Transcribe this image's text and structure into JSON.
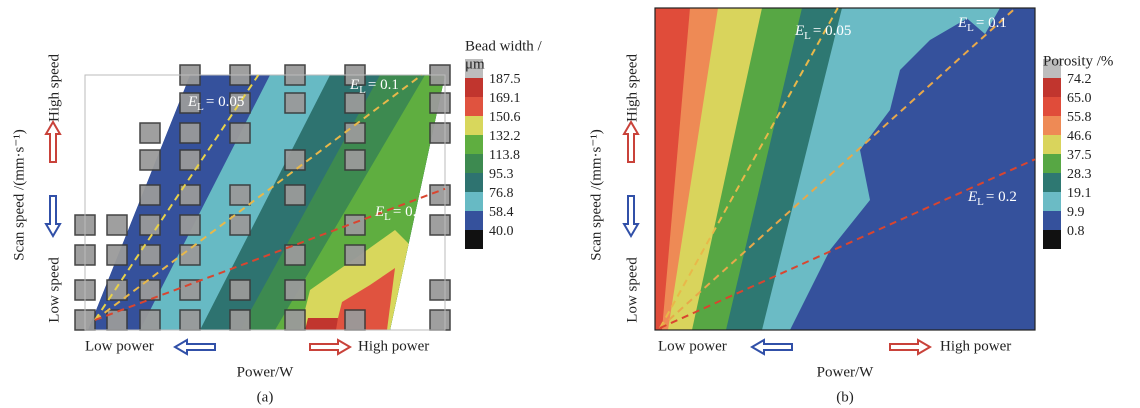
{
  "chart_data": [
    {
      "type": "contour",
      "x_label": "Power/W",
      "y_label": "Scan speed /(mm·s⁻¹)",
      "panel_label": "(a)",
      "colorbar_title": [
        "Bead width /",
        "μm"
      ],
      "levels": [
        187.5,
        169.1,
        150.6,
        132.2,
        113.8,
        95.3,
        76.8,
        58.4,
        {
          "value": 40,
          "label": "40.0"
        }
      ],
      "colors": [
        "#c1352e",
        "#e0533f",
        "#d8d75c",
        "#5fae40",
        "#3d8a50",
        "#2e7370",
        "#67bac4",
        "#35519c",
        "#111111"
      ],
      "power_labels": [
        "Low power",
        "High power"
      ],
      "speed_labels": [
        "Low speed",
        "High speed"
      ],
      "iso_lines": [
        {
          "symbol": "E",
          "subscript": "L",
          "value": 0.05,
          "value_label": "= 0.05",
          "color": "#e8d24a"
        },
        {
          "symbol": "E",
          "subscript": "L",
          "value": 0.1,
          "value_label": "= 0.1",
          "color": "#e8b84a"
        },
        {
          "symbol": "E",
          "subscript": "L",
          "value": 0.2,
          "value_label": "= 0.2",
          "color": "#d9452f"
        }
      ]
    },
    {
      "type": "contour",
      "x_label": "Power/W",
      "y_label": "Scan speed /(mm·s⁻¹)",
      "panel_label": "(b)",
      "colorbar_title": [
        "Porosity /%"
      ],
      "levels": [
        74.2,
        {
          "value": 65,
          "label": "65.0"
        },
        55.8,
        46.6,
        37.5,
        28.3,
        19.1,
        9.9,
        0.8
      ],
      "colors": [
        "#c1352e",
        "#e04c3a",
        "#ee8a55",
        "#d9d45c",
        "#57a744",
        "#2e7872",
        "#6bbbc5",
        "#35519c",
        "#111111"
      ],
      "power_labels": [
        "Low power",
        "High power"
      ],
      "speed_labels": [
        "Low speed",
        "High speed"
      ],
      "iso_lines": [
        {
          "symbol": "E",
          "subscript": "L",
          "value": 0.05,
          "value_label": "= 0.05",
          "color": "#e8b84a"
        },
        {
          "symbol": "E",
          "subscript": "L",
          "value": 0.1,
          "value_label": "= 0.1",
          "color": "#e8a84a"
        },
        {
          "symbol": "E",
          "subscript": "L",
          "value": 0.2,
          "value_label": "= 0.2",
          "color": "#d9452f"
        }
      ]
    }
  ]
}
